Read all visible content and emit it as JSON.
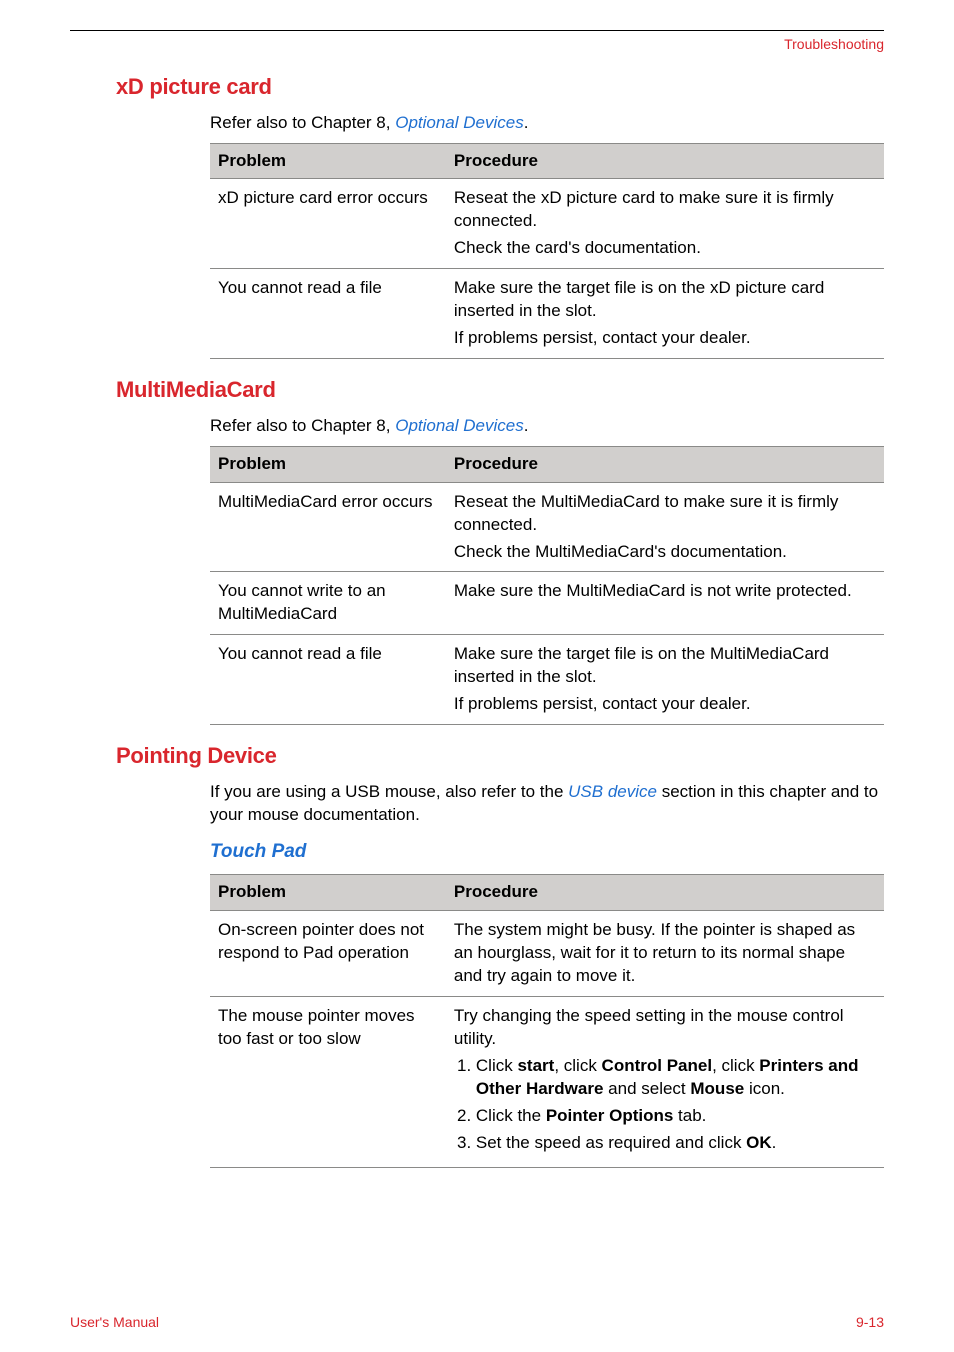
{
  "header": {
    "section_label": "Troubleshooting"
  },
  "sections": {
    "xd": {
      "heading": "xD picture card",
      "intro_prefix": "Refer also to Chapter 8, ",
      "intro_link": "Optional Devices",
      "intro_suffix": ".",
      "table": {
        "col_problem": "Problem",
        "col_procedure": "Procedure",
        "rows": [
          {
            "problem": "xD picture card error occurs",
            "proc1": "Reseat the xD picture card to make sure it is firmly connected.",
            "proc2": "Check the card's documentation."
          },
          {
            "problem": "You cannot read a file",
            "proc1": "Make sure the target file is on the xD picture card inserted in the slot.",
            "proc2": "If problems persist, contact your dealer."
          }
        ]
      }
    },
    "mmc": {
      "heading": "MultiMediaCard",
      "intro_prefix": "Refer also to Chapter 8, ",
      "intro_link": "Optional Devices",
      "intro_suffix": ".",
      "table": {
        "col_problem": "Problem",
        "col_procedure": "Procedure",
        "rows": [
          {
            "problem": "MultiMediaCard error occurs",
            "proc1": "Reseat the MultiMediaCard to make sure it is firmly connected.",
            "proc2": "Check the MultiMediaCard's documentation."
          },
          {
            "problem": "You cannot write to an MultiMediaCard",
            "proc1": "Make sure the MultiMediaCard is not write protected."
          },
          {
            "problem": "You cannot read a file",
            "proc1": "Make sure the target file is on the MultiMediaCard inserted in the slot.",
            "proc2": "If problems persist, contact your dealer."
          }
        ]
      }
    },
    "pointing": {
      "heading": "Pointing Device",
      "intro_prefix": "If you are using a USB mouse, also refer to the ",
      "intro_link": "USB device",
      "intro_suffix": " section in this chapter and to your mouse documentation.",
      "sub_heading": "Touch Pad",
      "table": {
        "col_problem": "Problem",
        "col_procedure": "Procedure",
        "rows": [
          {
            "problem": "On-screen pointer does not respond to Pad operation",
            "proc1": "The system might be busy. If the pointer is shaped as an hourglass, wait for it to return to its normal shape and try again to move it."
          },
          {
            "problem": "The mouse pointer moves too fast or too slow",
            "proc1": "Try changing the speed setting in the mouse control utility.",
            "step1_prefix": "Click ",
            "step1_b1": "start",
            "step1_mid1": ", click ",
            "step1_b2": "Control Panel",
            "step1_mid2": ", click ",
            "step1_b3": "Printers and Other Hardware",
            "step1_mid3": " and select ",
            "step1_b4": "Mouse",
            "step1_suffix": " icon.",
            "step2_prefix": "Click the ",
            "step2_b1": "Pointer Options",
            "step2_suffix": " tab.",
            "step3_prefix": "Set the speed as required and click ",
            "step3_b1": "OK",
            "step3_suffix": "."
          }
        ]
      }
    }
  },
  "footer": {
    "left": "User's Manual",
    "right": "9-13"
  }
}
